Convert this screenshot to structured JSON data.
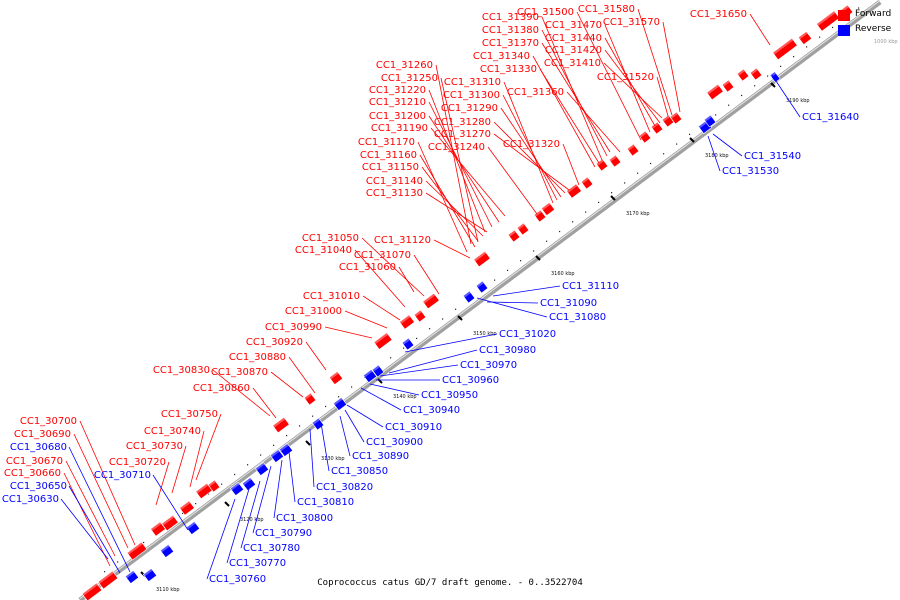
{
  "caption": "Coprococcus catus GD/7 draft genome. - 0..3522704",
  "legend": {
    "items": [
      {
        "label": "Forward",
        "color": "#ff0000"
      },
      {
        "label": "Reverse",
        "color": "#0000ff"
      }
    ],
    "scale": "1000 kbp"
  },
  "colors": {
    "forward": "#ff0000",
    "reverse": "#0000ff",
    "backbone": "#a0a0a0",
    "forward_line": "#ff0000",
    "reverse_line": "#0000ff"
  },
  "ticks": [
    "3110 kbp",
    "3120 kbp",
    "3130 kbp",
    "3140 kbp",
    "3150 kbp",
    "3160 kbp",
    "3170 kbp",
    "3180 kbp",
    "3190 kbp"
  ],
  "forward_genes": [
    "CC1_30700",
    "CC1_30690",
    "CC1_30670",
    "CC1_30660",
    "CC1_30750",
    "CC1_30740",
    "CC1_30730",
    "CC1_30720",
    "CC1_30830",
    "CC1_30880",
    "CC1_30870",
    "CC1_30860",
    "CC1_30920",
    "CC1_30990",
    "CC1_31010",
    "CC1_31000",
    "CC1_31050",
    "CC1_31040",
    "CC1_31060",
    "CC1_31070",
    "CC1_31120",
    "CC1_31260",
    "CC1_31250",
    "CC1_31220",
    "CC1_31210",
    "CC1_31200",
    "CC1_31190",
    "CC1_31170",
    "CC1_31160",
    "CC1_31150",
    "CC1_31140",
    "CC1_31130",
    "CC1_31310",
    "CC1_31300",
    "CC1_31290",
    "CC1_31280",
    "CC1_31270",
    "CC1_31240",
    "CC1_31390",
    "CC1_31380",
    "CC1_31370",
    "CC1_31340",
    "CC1_31330",
    "CC1_31500",
    "CC1_31470",
    "CC1_31440",
    "CC1_31420",
    "CC1_31410",
    "CC1_31580",
    "CC1_31570",
    "CC1_31360",
    "CC1_31320",
    "CC1_31520",
    "CC1_31650"
  ],
  "reverse_genes": [
    "CC1_30680",
    "CC1_30650",
    "CC1_30630",
    "CC1_30710",
    "CC1_30760",
    "CC1_30770",
    "CC1_30780",
    "CC1_30790",
    "CC1_30800",
    "CC1_30810",
    "CC1_30820",
    "CC1_30850",
    "CC1_30890",
    "CC1_30900",
    "CC1_30910",
    "CC1_30940",
    "CC1_30950",
    "CC1_30960",
    "CC1_30970",
    "CC1_30980",
    "CC1_31020",
    "CC1_31080",
    "CC1_31090",
    "CC1_31110",
    "CC1_31530",
    "CC1_31540",
    "CC1_31640"
  ]
}
